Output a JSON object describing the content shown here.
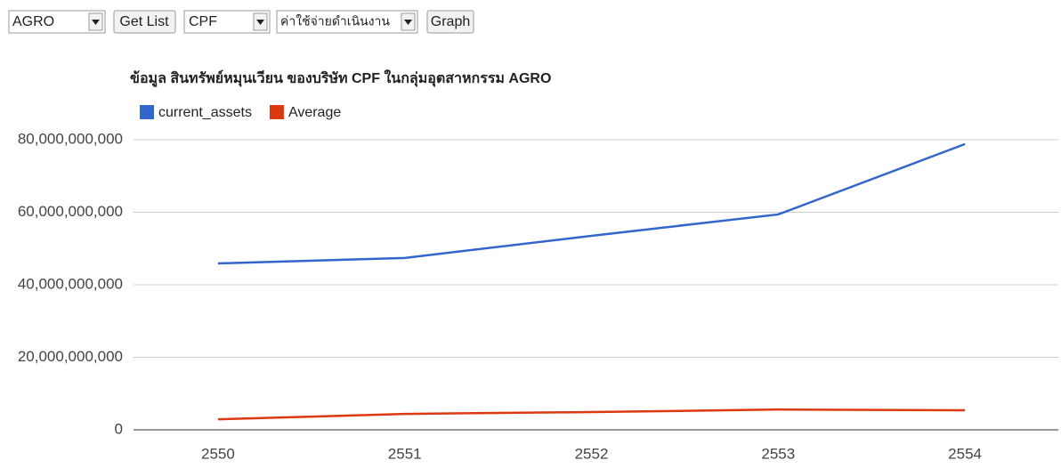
{
  "controls": {
    "group_select": "AGRO",
    "get_list_button": "Get List",
    "company_select": "CPF",
    "item_select": "ค่าใช้จ่ายดำเนินงาน",
    "graph_button": "Graph"
  },
  "chart_data": {
    "type": "line",
    "title": "ข้อมูล สินทรัพย์หมุนเวียน ของบริษัท CPF ในกลุ่มอุตสาหกรรม AGRO",
    "categories": [
      "2550",
      "2551",
      "2552",
      "2553",
      "2554"
    ],
    "series": [
      {
        "name": "current_assets",
        "color": "#3366cc",
        "values": [
          45900000000,
          47400000000,
          53500000000,
          59400000000,
          78800000000
        ]
      },
      {
        "name": "Average",
        "color": "#dc3912",
        "values": [
          2900000000,
          4400000000,
          4900000000,
          5600000000,
          5400000000
        ]
      }
    ],
    "ylim": [
      0,
      80000000000
    ],
    "yticks": [
      0,
      {
        "value": 20000000000,
        "label": "20,000,000,000"
      },
      {
        "value": 40000000000,
        "label": "40,000,000,000"
      },
      {
        "value": 60000000000,
        "label": "60,000,000,000"
      },
      {
        "value": 80000000000,
        "label": "80,000,000,000"
      }
    ],
    "grid": true,
    "legend": "top"
  }
}
